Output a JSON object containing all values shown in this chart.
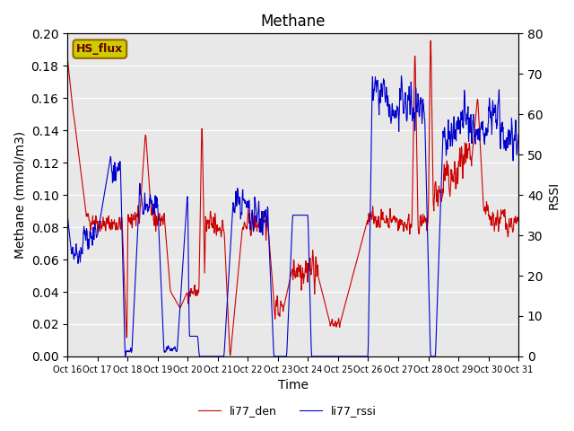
{
  "title": "Methane",
  "ylabel_left": "Methane (mmol/m3)",
  "ylabel_right": "RSSI",
  "xlabel": "Time",
  "ylim_left": [
    0.0,
    0.2
  ],
  "ylim_right": [
    0,
    80
  ],
  "bg_color": "#e8e8e8",
  "fig_color": "#ffffff",
  "line_red_color": "#cc0000",
  "line_blue_color": "#0000cc",
  "label_red": "li77_den",
  "label_blue": "li77_rssi",
  "annotation_text": "HS_flux",
  "annotation_bg": "#cccc00",
  "annotation_border": "#996600",
  "x_tick_labels": [
    "Oct 16",
    "Oct 17",
    "Oct 18",
    "Oct 19",
    "Oct 20",
    "Oct 21",
    "Oct 22",
    "Oct 23",
    "Oct 24",
    "Oct 25",
    "Oct 26",
    "Oct 27",
    "Oct 28",
    "Oct 29",
    "Oct 30",
    "Oct 31"
  ],
  "x_tick_positions": [
    0,
    96,
    192,
    288,
    384,
    480,
    576,
    672,
    768,
    864,
    960,
    1056,
    1152,
    1248,
    1344,
    1440
  ],
  "n_points": 1441
}
